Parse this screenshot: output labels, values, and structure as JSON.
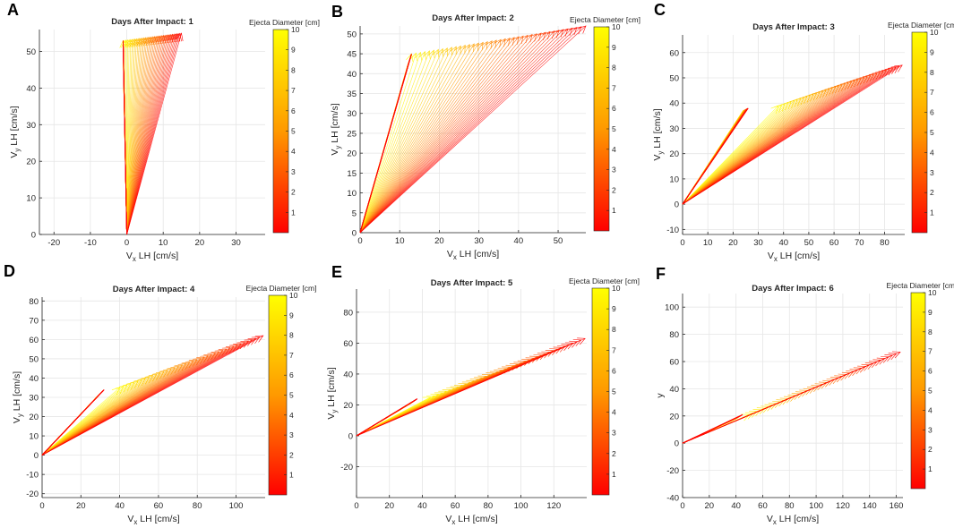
{
  "figure": {
    "colorbar_label": "Ejecta Diameter [cm]",
    "xlabel_main": "V",
    "xlabel_sub": "x",
    "xlabel_rest": " LH [cm/s]",
    "ylabel_main": "V",
    "ylabel_sub": "y",
    "ylabel_rest": " LH [cm/s]",
    "colors": {
      "low": "#ff0000",
      "high": "#ffff00",
      "grid": "#e6e6e6",
      "axis": "#262626"
    }
  },
  "chart_data": [
    {
      "panel": "A",
      "type": "quiver",
      "title": "Days After Impact: 1",
      "xlabel": "Vx LH [cm/s]",
      "ylabel": "Vy LH [cm/s]",
      "xlim": [
        -24,
        38
      ],
      "ylim": [
        0,
        56
      ],
      "xticks": [
        -20,
        -10,
        0,
        10,
        20,
        30
      ],
      "yticks": [
        0,
        10,
        20,
        30,
        40,
        50
      ],
      "origin": [
        0,
        0
      ],
      "base_start": [
        -1,
        50
      ],
      "base_end": [
        -1,
        53
      ],
      "tip_start": [
        -1,
        53
      ],
      "tip_end": [
        15,
        55
      ],
      "colorbar": {
        "label": "Ejecta Diameter [cm]",
        "range": [
          0,
          10
        ],
        "ticks": [
          1,
          2,
          3,
          4,
          5,
          6,
          7,
          8,
          9,
          10
        ]
      }
    },
    {
      "panel": "B",
      "type": "quiver",
      "title": "Days After Impact: 2",
      "xlabel": "Vx LH [cm/s]",
      "ylabel": "Vy LH [cm/s]",
      "xlim": [
        0,
        57
      ],
      "ylim": [
        0,
        52
      ],
      "xticks": [
        0,
        10,
        20,
        30,
        40,
        50
      ],
      "yticks": [
        0,
        5,
        10,
        15,
        20,
        25,
        30,
        35,
        40,
        45,
        50
      ],
      "origin": [
        0,
        0
      ],
      "base_start": [
        12,
        42
      ],
      "base_end": [
        13,
        45
      ],
      "tip_start": [
        13,
        45
      ],
      "tip_end": [
        57,
        52
      ],
      "colorbar": {
        "label": "Ejecta Diameter [cm]",
        "range": [
          0,
          10
        ],
        "ticks": [
          1,
          2,
          3,
          4,
          5,
          6,
          7,
          8,
          9,
          10
        ]
      }
    },
    {
      "panel": "C",
      "type": "quiver",
      "title": "Days After Impact: 3",
      "xlabel": "Vx LH [cm/s]",
      "ylabel": "Vy LH [cm/s]",
      "xlim": [
        0,
        88
      ],
      "ylim": [
        -12,
        67
      ],
      "xticks": [
        0,
        10,
        20,
        30,
        40,
        50,
        60,
        70,
        80
      ],
      "yticks": [
        -10,
        0,
        10,
        20,
        30,
        40,
        50,
        60
      ],
      "origin": [
        0,
        0
      ],
      "base_start": [
        24,
        37
      ],
      "base_end": [
        26,
        38
      ],
      "tip_start": [
        38,
        39
      ],
      "tip_end": [
        87,
        55
      ],
      "colorbar": {
        "label": "Ejecta Diameter [cm]",
        "range": [
          0,
          10
        ],
        "ticks": [
          1,
          2,
          3,
          4,
          5,
          6,
          7,
          8,
          9,
          10
        ]
      }
    },
    {
      "panel": "D",
      "type": "quiver",
      "title": "Days After Impact: 4",
      "xlabel": "Vx LH [cm/s]",
      "ylabel": "Vy LH [cm/s]",
      "xlim": [
        0,
        115
      ],
      "ylim": [
        -22,
        82
      ],
      "xticks": [
        0,
        20,
        40,
        60,
        80,
        100
      ],
      "yticks": [
        -20,
        -10,
        0,
        10,
        20,
        30,
        40,
        50,
        60,
        70,
        80
      ],
      "origin": [
        0,
        0
      ],
      "base_start": [
        29,
        31
      ],
      "base_end": [
        32,
        34
      ],
      "tip_start": [
        40,
        35
      ],
      "tip_end": [
        114,
        62
      ],
      "colorbar": {
        "label": "Ejecta Diameter [cm]",
        "range": [
          0,
          10
        ],
        "ticks": [
          1,
          2,
          3,
          4,
          5,
          6,
          7,
          8,
          9,
          10
        ]
      }
    },
    {
      "panel": "E",
      "type": "quiver",
      "title": "Days After Impact: 5",
      "xlabel": "Vx LH [cm/s]",
      "ylabel": "Vy LH [cm/s]",
      "xlim": [
        0,
        140
      ],
      "ylim": [
        -40,
        95
      ],
      "xticks": [
        0,
        20,
        40,
        60,
        80,
        100,
        120
      ],
      "yticks": [
        -20,
        0,
        20,
        40,
        60,
        80
      ],
      "origin": [
        0,
        0
      ],
      "base_start": [
        33,
        21
      ],
      "base_end": [
        37,
        24
      ],
      "tip_start": [
        45,
        25
      ],
      "tip_end": [
        139,
        63
      ],
      "colorbar": {
        "label": "Ejecta Diameter [cm]",
        "range": [
          0,
          10
        ],
        "ticks": [
          1,
          2,
          3,
          4,
          5,
          6,
          7,
          8,
          9,
          10
        ]
      }
    },
    {
      "panel": "F",
      "type": "quiver",
      "title": "Days After Impact: 6",
      "xlabel": "Vx LH [cm/s]",
      "ylabel": "y",
      "xlim": [
        0,
        165
      ],
      "ylim": [
        -40,
        110
      ],
      "xticks": [
        0,
        20,
        40,
        60,
        80,
        100,
        120,
        140,
        160
      ],
      "yticks": [
        -40,
        -20,
        0,
        20,
        40,
        60,
        80,
        100
      ],
      "origin": [
        0,
        0
      ],
      "base_start": [
        40,
        18
      ],
      "base_end": [
        45,
        21
      ],
      "tip_start": [
        50,
        21
      ],
      "tip_end": [
        163,
        67
      ],
      "colorbar": {
        "label": "Ejecta Diameter [cm]",
        "range": [
          0,
          10
        ],
        "ticks": [
          1,
          2,
          3,
          4,
          5,
          6,
          7,
          8,
          9,
          10
        ]
      }
    }
  ]
}
